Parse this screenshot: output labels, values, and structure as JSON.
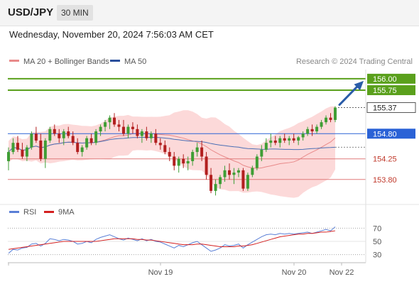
{
  "header": {
    "symbol": "USD/JPY",
    "interval": "30 MIN",
    "datetime": "Wednesday, November 20, 2024 7:56:03 AM CET"
  },
  "legend": {
    "ma20_bb": "MA 20 + Bollinger Bands",
    "ma50": "MA 50",
    "rsi": "RSI",
    "rsi_ma": "9MA",
    "credit": "Research © 2024 Trading Central"
  },
  "colors": {
    "up": "#3f9e35",
    "down": "#b21f1f",
    "bb_fill": "#fbd0d0",
    "ma20": "#e88a8a",
    "ma50": "#4a6fb5",
    "resistance": "#5aa01c",
    "pivot": "#2a62d6",
    "support": "#e07a7a",
    "arrow": "#2a5ca8",
    "rsi": "#5a7fd6",
    "rsi_ma": "#d42020"
  },
  "chart_data": {
    "type": "candlestick",
    "x_ticks": [
      "Nov 19",
      "Nov 20",
      "Nov 22"
    ],
    "ylim": [
      153.3,
      156.2
    ],
    "levels": [
      {
        "value": 156.0,
        "label": "156.00",
        "kind": "resistance"
      },
      {
        "value": 155.75,
        "label": "155.75",
        "kind": "resistance"
      },
      {
        "value": 154.8,
        "label": "154.80",
        "kind": "pivot"
      },
      {
        "value": 154.25,
        "label": "154.25",
        "kind": "support"
      },
      {
        "value": 153.8,
        "label": "153.80",
        "kind": "support"
      }
    ],
    "last_price": {
      "value": 155.37,
      "label": "155.37"
    },
    "candles": [
      [
        154.2,
        154.5,
        154.0,
        154.4
      ],
      [
        154.4,
        154.7,
        154.35,
        154.6
      ],
      [
        154.6,
        154.75,
        154.4,
        154.45
      ],
      [
        154.45,
        154.6,
        154.25,
        154.3
      ],
      [
        154.3,
        154.55,
        154.2,
        154.5
      ],
      [
        154.5,
        154.85,
        154.45,
        154.8
      ],
      [
        154.8,
        154.95,
        154.6,
        154.65
      ],
      [
        154.65,
        154.8,
        154.2,
        154.25
      ],
      [
        154.25,
        154.7,
        154.05,
        154.65
      ],
      [
        154.65,
        154.95,
        154.6,
        154.9
      ],
      [
        154.9,
        155.0,
        154.75,
        154.8
      ],
      [
        154.8,
        154.9,
        154.6,
        154.7
      ],
      [
        154.7,
        154.9,
        154.55,
        154.85
      ],
      [
        154.85,
        154.95,
        154.7,
        154.75
      ],
      [
        154.75,
        154.85,
        154.55,
        154.6
      ],
      [
        154.6,
        154.7,
        154.35,
        154.4
      ],
      [
        154.4,
        154.55,
        154.3,
        154.5
      ],
      [
        154.5,
        154.75,
        154.45,
        154.7
      ],
      [
        154.7,
        154.8,
        154.55,
        154.6
      ],
      [
        154.6,
        154.9,
        154.55,
        154.85
      ],
      [
        154.85,
        155.0,
        154.75,
        154.95
      ],
      [
        154.95,
        155.1,
        154.85,
        155.05
      ],
      [
        155.05,
        155.2,
        154.9,
        155.15
      ],
      [
        155.15,
        155.25,
        154.95,
        155.0
      ],
      [
        155.0,
        155.1,
        154.85,
        154.95
      ],
      [
        154.95,
        155.1,
        154.75,
        154.8
      ],
      [
        154.8,
        155.0,
        154.7,
        154.95
      ],
      [
        154.95,
        155.05,
        154.8,
        154.9
      ],
      [
        154.9,
        155.0,
        154.7,
        154.75
      ],
      [
        154.75,
        154.9,
        154.6,
        154.85
      ],
      [
        154.85,
        154.95,
        154.65,
        154.7
      ],
      [
        154.7,
        154.85,
        154.6,
        154.8
      ],
      [
        154.8,
        154.9,
        154.55,
        154.6
      ],
      [
        154.6,
        154.7,
        154.45,
        154.55
      ],
      [
        154.55,
        154.65,
        154.35,
        154.4
      ],
      [
        154.4,
        154.5,
        154.2,
        154.3
      ],
      [
        154.3,
        154.4,
        154.0,
        154.1
      ],
      [
        154.1,
        154.3,
        153.95,
        154.25
      ],
      [
        154.25,
        154.35,
        154.05,
        154.15
      ],
      [
        154.15,
        154.3,
        154.0,
        154.2
      ],
      [
        154.2,
        154.45,
        154.1,
        154.4
      ],
      [
        154.4,
        154.6,
        154.3,
        154.5
      ],
      [
        154.5,
        154.65,
        154.2,
        154.3
      ],
      [
        154.3,
        154.4,
        153.8,
        153.9
      ],
      [
        153.9,
        154.05,
        153.5,
        153.55
      ],
      [
        153.55,
        153.8,
        153.45,
        153.7
      ],
      [
        153.7,
        153.9,
        153.6,
        153.85
      ],
      [
        153.85,
        154.1,
        153.75,
        154.0
      ],
      [
        154.0,
        154.15,
        153.8,
        153.9
      ],
      [
        153.9,
        154.05,
        153.7,
        153.95
      ],
      [
        153.95,
        154.05,
        153.85,
        154.0
      ],
      [
        154.0,
        154.05,
        153.55,
        153.6
      ],
      [
        153.6,
        153.95,
        153.55,
        153.9
      ],
      [
        153.9,
        154.1,
        153.85,
        154.05
      ],
      [
        154.05,
        154.35,
        154.0,
        154.3
      ],
      [
        154.3,
        154.55,
        154.2,
        154.45
      ],
      [
        154.45,
        154.7,
        154.4,
        154.6
      ],
      [
        154.6,
        154.8,
        154.5,
        154.65
      ],
      [
        154.65,
        154.75,
        154.55,
        154.6
      ],
      [
        154.6,
        154.75,
        154.5,
        154.7
      ],
      [
        154.7,
        154.8,
        154.6,
        154.65
      ],
      [
        154.65,
        154.75,
        154.55,
        154.7
      ],
      [
        154.7,
        154.8,
        154.6,
        154.65
      ],
      [
        154.65,
        154.75,
        154.55,
        154.72
      ],
      [
        154.72,
        154.85,
        154.65,
        154.8
      ],
      [
        154.8,
        154.95,
        154.75,
        154.9
      ],
      [
        154.9,
        155.0,
        154.75,
        154.85
      ],
      [
        154.85,
        155.0,
        154.8,
        154.95
      ],
      [
        154.95,
        155.1,
        154.9,
        155.05
      ],
      [
        155.05,
        155.2,
        155.0,
        155.15
      ],
      [
        155.15,
        155.25,
        155.05,
        155.1
      ],
      [
        155.1,
        155.4,
        155.05,
        155.37
      ]
    ],
    "rsi_ylim": [
      20,
      80
    ],
    "rsi_ticks": [
      70,
      50,
      30
    ],
    "rsi": [
      32,
      38,
      37,
      40,
      41,
      46,
      47,
      43,
      47,
      54,
      53,
      51,
      53,
      52,
      50,
      46,
      47,
      50,
      48,
      53,
      56,
      58,
      60,
      57,
      54,
      52,
      55,
      53,
      51,
      54,
      51,
      53,
      50,
      49,
      46,
      43,
      40,
      44,
      42,
      45,
      48,
      50,
      45,
      40,
      35,
      37,
      40,
      45,
      43,
      44,
      46,
      40,
      45,
      49,
      53,
      57,
      60,
      61,
      60,
      62,
      61,
      62,
      61,
      62,
      63,
      64,
      62,
      64,
      66,
      68,
      66,
      72
    ],
    "rsi_ma": [
      38,
      39,
      40,
      41,
      42,
      43,
      44,
      45,
      46,
      47,
      48,
      49,
      50,
      50,
      50,
      50,
      50,
      50,
      50,
      50,
      51,
      52,
      53,
      54,
      54,
      54,
      54,
      54,
      53,
      53,
      52,
      52,
      51,
      50,
      49,
      48,
      47,
      46,
      45,
      45,
      45,
      46,
      46,
      45,
      44,
      43,
      42,
      42,
      42,
      42,
      43,
      43,
      44,
      45,
      47,
      49,
      51,
      53,
      55,
      57,
      58,
      59,
      60,
      61,
      61,
      62,
      62,
      63,
      64,
      64,
      65,
      66
    ]
  }
}
